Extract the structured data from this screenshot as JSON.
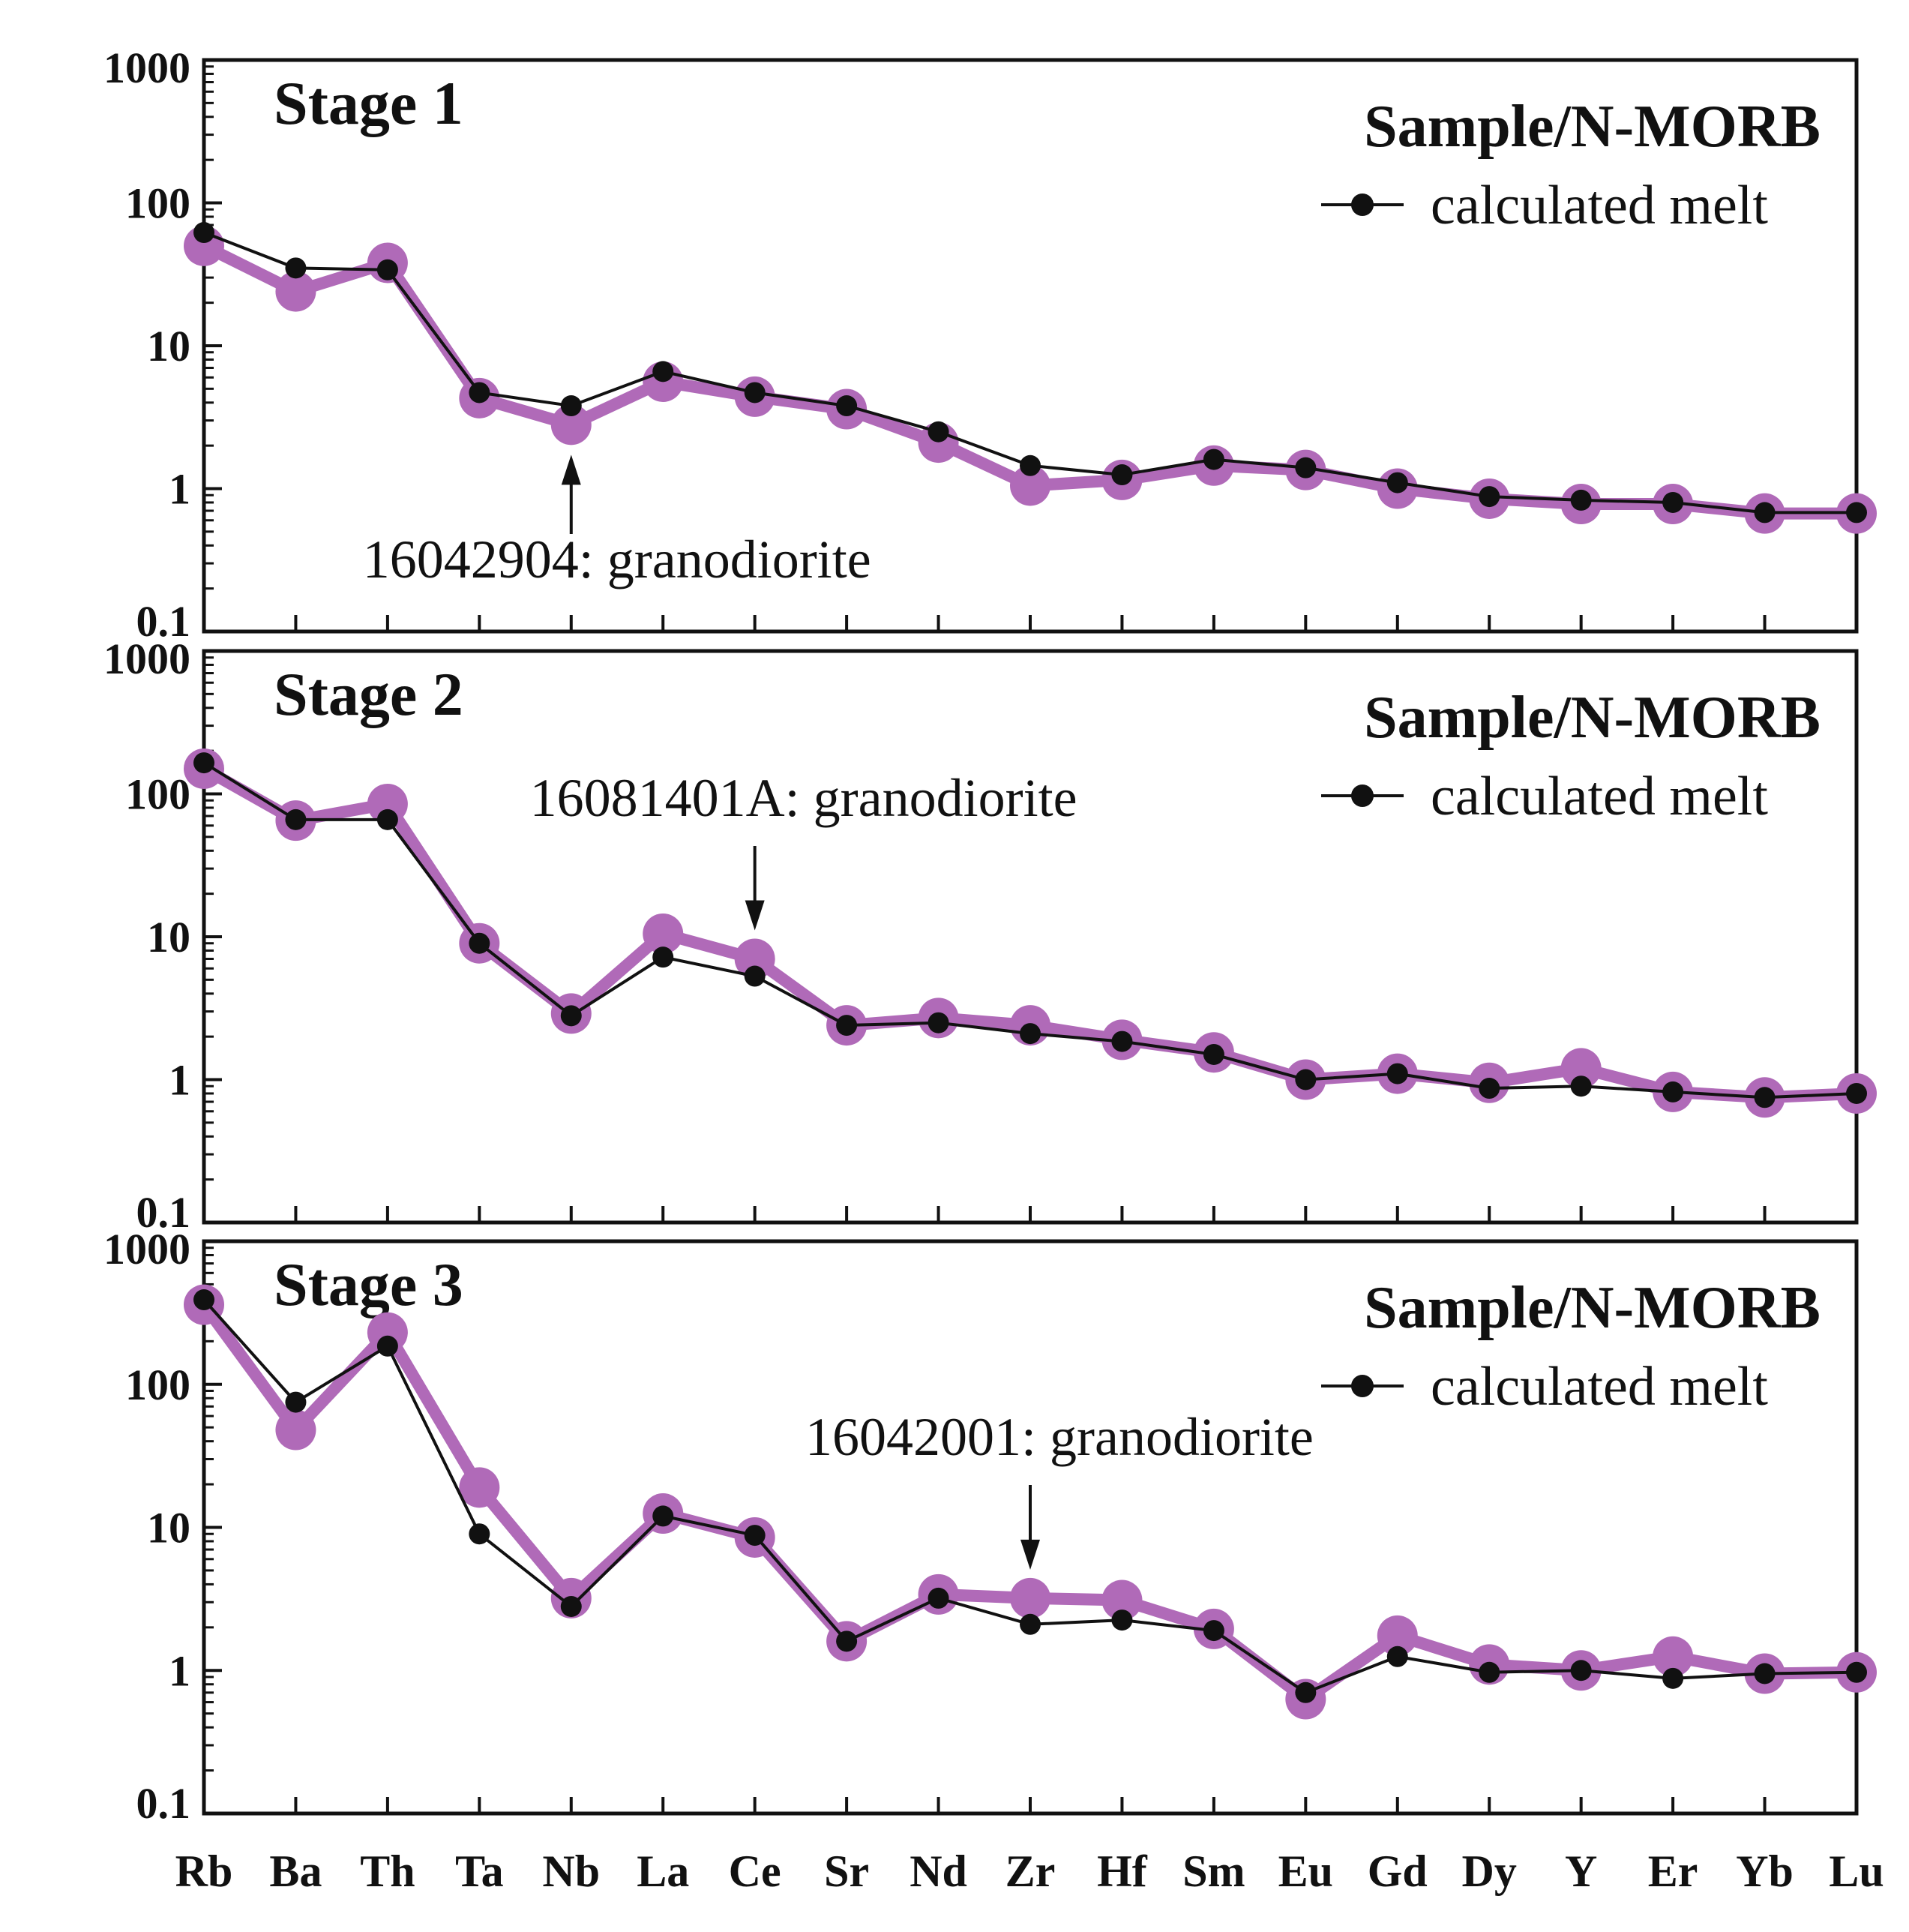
{
  "chart_data": [
    {
      "type": "line",
      "title": "Stage 1",
      "ylabel": "Sample/N-MORB",
      "yscale": "log",
      "ylim": [
        0.1,
        1000
      ],
      "yticks": [
        "1000",
        "100",
        "10",
        "1",
        "0.1"
      ],
      "categories": [
        "Rb",
        "Ba",
        "Th",
        "Ta",
        "Nb",
        "La",
        "Ce",
        "Sr",
        "Nd",
        "Zr",
        "Hf",
        "Sm",
        "Eu",
        "Gd",
        "Dy",
        "Y",
        "Er",
        "Yb",
        "Lu"
      ],
      "series": [
        {
          "name": "16042904: granodiorite",
          "values": [
            50,
            24,
            38,
            4.3,
            2.8,
            5.6,
            4.4,
            3.6,
            2.1,
            1.05,
            1.15,
            1.45,
            1.35,
            1.0,
            0.85,
            0.78,
            0.78,
            0.67,
            0.67
          ]
        },
        {
          "name": "calculated melt",
          "values": [
            62,
            35,
            34,
            4.7,
            3.8,
            6.6,
            4.7,
            3.8,
            2.5,
            1.45,
            1.25,
            1.6,
            1.4,
            1.1,
            0.88,
            0.83,
            0.8,
            0.68,
            0.68
          ]
        }
      ],
      "legend": "calculated melt",
      "annotation": {
        "text": "16042904: granodiorite",
        "category": "Nb",
        "direction": "up"
      }
    },
    {
      "type": "line",
      "title": "Stage 2",
      "ylabel": "Sample/N-MORB",
      "yscale": "log",
      "ylim": [
        0.1,
        1000
      ],
      "yticks": [
        "1000",
        "100",
        "10",
        "1",
        "0.1"
      ],
      "categories": [
        "Rb",
        "Ba",
        "Th",
        "Ta",
        "Nb",
        "La",
        "Ce",
        "Sr",
        "Nd",
        "Zr",
        "Hf",
        "Sm",
        "Eu",
        "Gd",
        "Dy",
        "Y",
        "Er",
        "Yb",
        "Lu"
      ],
      "series": [
        {
          "name": "16081401A: granodiorite",
          "values": [
            150,
            65,
            85,
            9,
            2.9,
            10.5,
            7,
            2.4,
            2.7,
            2.4,
            1.9,
            1.55,
            1.0,
            1.1,
            0.95,
            1.2,
            0.82,
            0.75,
            0.8
          ]
        },
        {
          "name": "calculated melt",
          "values": [
            165,
            66,
            66,
            9,
            2.8,
            7.2,
            5.3,
            2.4,
            2.5,
            2.1,
            1.85,
            1.5,
            1.0,
            1.1,
            0.87,
            0.9,
            0.82,
            0.75,
            0.8
          ]
        }
      ],
      "legend": "calculated melt",
      "annotation": {
        "text": "16081401A: granodiorite",
        "category": "Ce",
        "direction": "down"
      }
    },
    {
      "type": "line",
      "title": "Stage 3",
      "ylabel": "Sample/N-MORB",
      "yscale": "log",
      "ylim": [
        0.1,
        1000
      ],
      "yticks": [
        "1000",
        "100",
        "10",
        "1",
        "0.1"
      ],
      "categories": [
        "Rb",
        "Ba",
        "Th",
        "Ta",
        "Nb",
        "La",
        "Ce",
        "Sr",
        "Nd",
        "Zr",
        "Hf",
        "Sm",
        "Eu",
        "Gd",
        "Dy",
        "Y",
        "Er",
        "Yb",
        "Lu"
      ],
      "series": [
        {
          "name": "16042001: granodiorite",
          "values": [
            360,
            48,
            230,
            19,
            3.2,
            12.5,
            8.5,
            1.6,
            3.4,
            3.2,
            3.1,
            1.95,
            0.63,
            1.75,
            1.1,
            1.0,
            1.25,
            0.95,
            0.97
          ]
        },
        {
          "name": "calculated melt",
          "values": [
            390,
            75,
            185,
            9,
            2.8,
            12,
            8.8,
            1.6,
            3.2,
            2.1,
            2.25,
            1.9,
            0.7,
            1.25,
            0.97,
            1.0,
            0.88,
            0.95,
            0.97
          ]
        }
      ],
      "legend": "calculated melt",
      "annotation": {
        "text": "16042001: granodiorite",
        "category": "Zr",
        "direction": "down"
      }
    }
  ]
}
